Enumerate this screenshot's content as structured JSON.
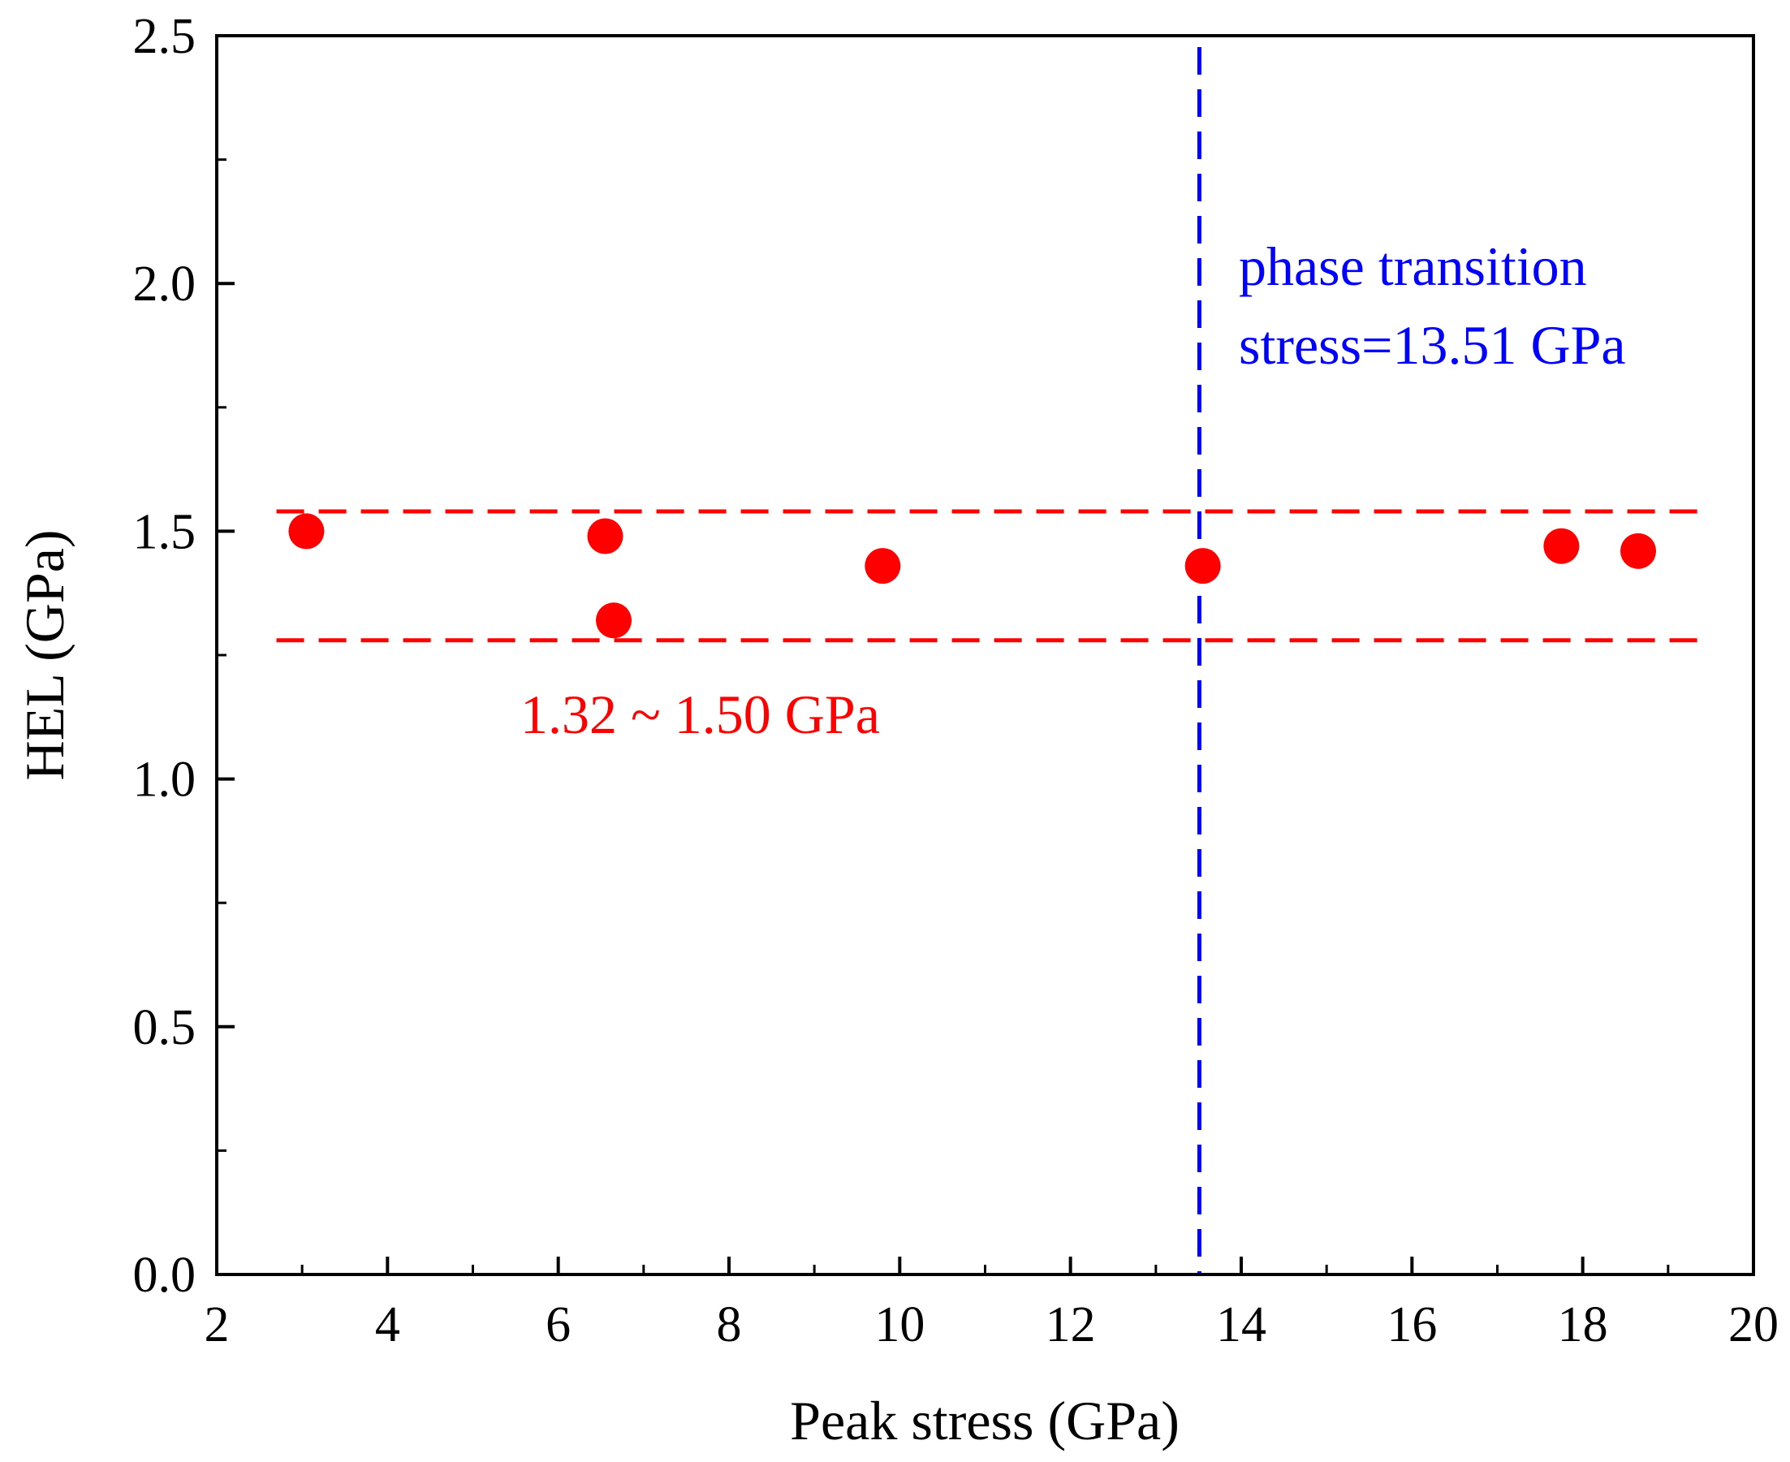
{
  "chart_data": {
    "type": "scatter",
    "xlabel": "Peak stress (GPa)",
    "ylabel": "HEL (GPa)",
    "xlim": [
      2,
      20
    ],
    "ylim": [
      0.0,
      2.5
    ],
    "x_ticks": [
      "2",
      "4",
      "6",
      "8",
      "10",
      "12",
      "14",
      "16",
      "18",
      "20"
    ],
    "y_ticks": [
      "0.0",
      "0.5",
      "1.0",
      "1.5",
      "2.0",
      "2.5"
    ],
    "series": [
      {
        "name": "HEL",
        "color": "#ff0000",
        "points": [
          {
            "x": 3.05,
            "y": 1.5
          },
          {
            "x": 6.55,
            "y": 1.49
          },
          {
            "x": 6.65,
            "y": 1.32
          },
          {
            "x": 9.8,
            "y": 1.43
          },
          {
            "x": 13.55,
            "y": 1.43
          },
          {
            "x": 17.75,
            "y": 1.47
          },
          {
            "x": 18.65,
            "y": 1.46
          }
        ]
      }
    ],
    "hlines": [
      {
        "y": 1.54,
        "color": "#ff0000",
        "style": "dashed",
        "x_from": 2.7,
        "x_to": 19.5
      },
      {
        "y": 1.28,
        "color": "#ff0000",
        "style": "dashed",
        "x_from": 2.7,
        "x_to": 19.5
      }
    ],
    "vlines": [
      {
        "x": 13.51,
        "color": "#0000ff",
        "style": "dashed"
      }
    ],
    "annotations": {
      "range_label": "1.32 ~ 1.50 GPa",
      "range_color": "#ff0000",
      "phase_line1": "phase transition",
      "phase_line2": "stress=13.51 GPa",
      "phase_color": "#0000ff"
    }
  }
}
